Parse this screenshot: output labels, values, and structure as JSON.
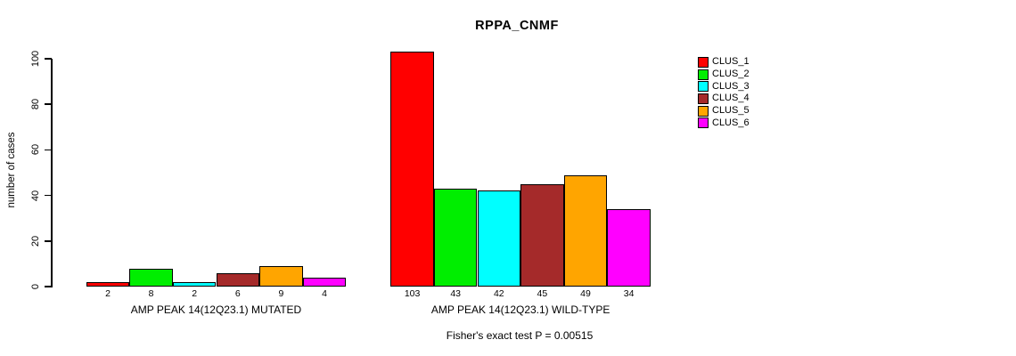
{
  "chart_data": {
    "type": "bar",
    "title": "RPPA_CNMF",
    "ylabel": "number of cases",
    "ylim": [
      0,
      100
    ],
    "yticks": [
      0,
      20,
      40,
      60,
      80,
      100
    ],
    "grid": false,
    "groups": [
      {
        "label": "AMP PEAK 14(12Q23.1) MUTATED",
        "values": [
          2,
          8,
          2,
          6,
          9,
          4
        ]
      },
      {
        "label": "AMP PEAK 14(12Q23.1) WILD-TYPE",
        "values": [
          103,
          43,
          42,
          45,
          49,
          34
        ]
      }
    ],
    "legend": {
      "position": "right",
      "entries": [
        {
          "label": "CLUS_1",
          "color": "#FF0000"
        },
        {
          "label": "CLUS_2",
          "color": "#00EE00"
        },
        {
          "label": "CLUS_3",
          "color": "#00FFFF"
        },
        {
          "label": "CLUS_4",
          "color": "#A52A2A"
        },
        {
          "label": "CLUS_5",
          "color": "#FFA500"
        },
        {
          "label": "CLUS_6",
          "color": "#FF00FF"
        }
      ]
    },
    "footnote": "Fisher's exact test P = 0.00515"
  }
}
